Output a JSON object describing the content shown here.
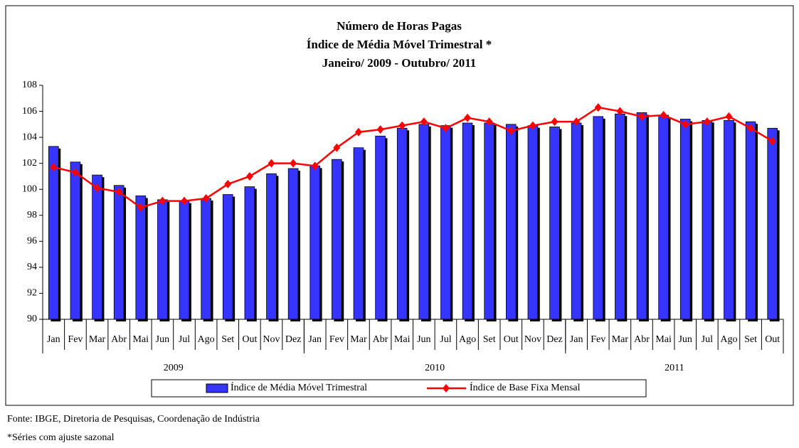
{
  "chart_data": {
    "type": "bar_line",
    "title": [
      "Número de Horas Pagas",
      "Índice de Média Móvel Trimestral *",
      "Janeiro/ 2009 - Outubro/ 2011"
    ],
    "categories": [
      "Jan",
      "Fev",
      "Mar",
      "Abr",
      "Mai",
      "Jun",
      "Jul",
      "Ago",
      "Set",
      "Out",
      "Nov",
      "Dez",
      "Jan",
      "Fev",
      "Mar",
      "Abr",
      "Mai",
      "Jun",
      "Jul",
      "Ago",
      "Set",
      "Out",
      "Nov",
      "Dez",
      "Jan",
      "Fev",
      "Mar",
      "Abr",
      "Mai",
      "Jun",
      "Jul",
      "Ago",
      "Set",
      "Out"
    ],
    "category_groups": [
      "2009",
      "2010",
      "2011"
    ],
    "series": [
      {
        "name": "Índice de Média Móvel Trimestral",
        "type": "bar",
        "color": "#3535ff",
        "values": [
          103.3,
          102.1,
          101.1,
          100.3,
          99.5,
          99.2,
          99.1,
          99.3,
          99.6,
          100.2,
          101.2,
          101.6,
          101.8,
          102.3,
          103.2,
          104.1,
          104.7,
          105.0,
          104.9,
          105.1,
          105.1,
          105.0,
          104.9,
          104.8,
          105.1,
          105.6,
          105.8,
          105.9,
          105.7,
          105.4,
          105.3,
          105.3,
          105.2,
          104.7
        ]
      },
      {
        "name": "Índice de Base Fixa Mensal",
        "type": "line",
        "color": "#ff0000",
        "values": [
          101.7,
          101.3,
          100.1,
          99.8,
          98.6,
          99.1,
          99.1,
          99.3,
          100.4,
          101.0,
          102.0,
          102.0,
          101.8,
          103.2,
          104.4,
          104.6,
          104.9,
          105.2,
          104.7,
          105.5,
          105.2,
          104.5,
          104.9,
          105.2,
          105.2,
          106.3,
          106.0,
          105.6,
          105.7,
          105.0,
          105.2,
          105.6,
          104.7,
          103.7
        ]
      }
    ],
    "ylim": [
      90,
      108
    ],
    "yticks": [
      90,
      92,
      94,
      96,
      98,
      100,
      102,
      104,
      106,
      108
    ],
    "grid": false,
    "legend": "bottom",
    "source": "Fonte: IBGE, Diretoria de Pesquisas, Coordenação de Indústria",
    "note": "*Séries com ajuste sazonal"
  }
}
